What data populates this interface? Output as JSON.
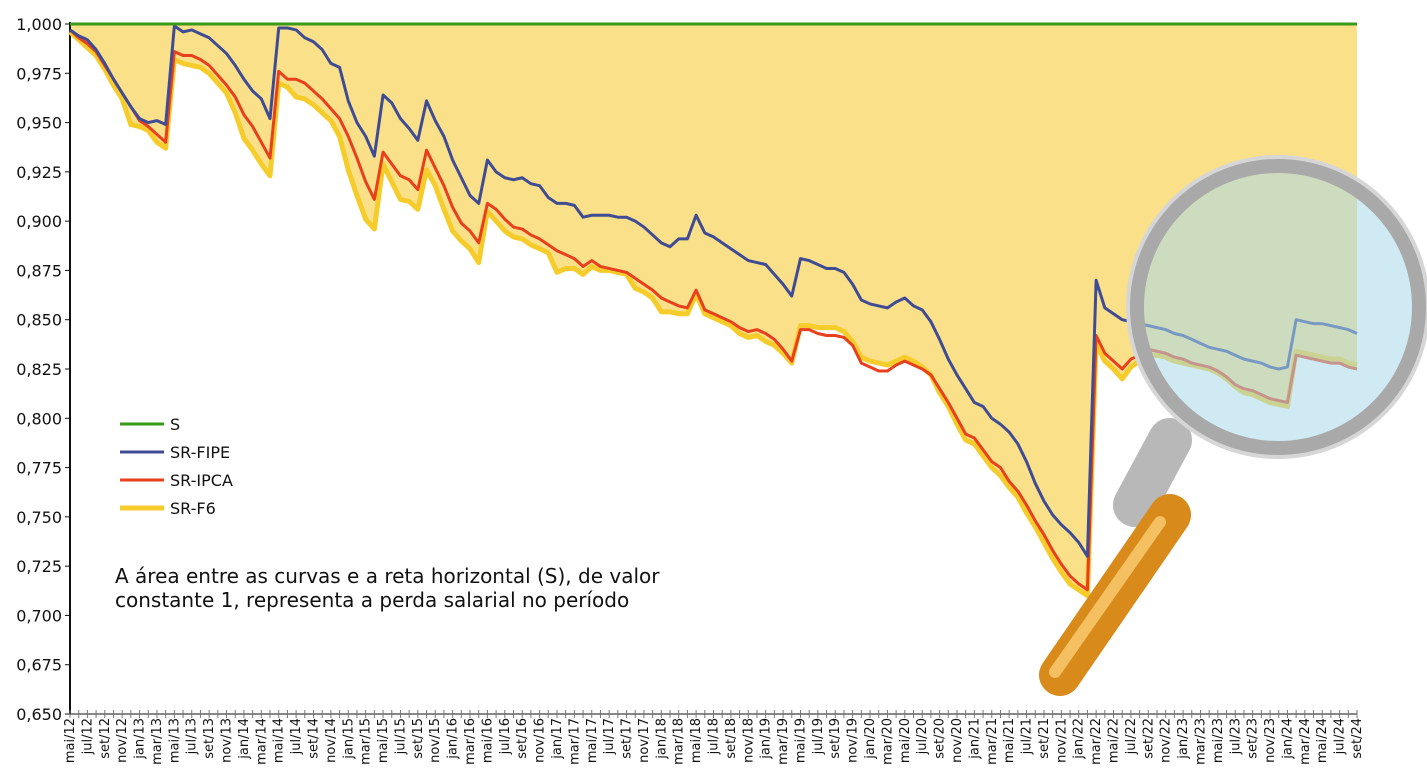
{
  "chart_data": {
    "type": "line",
    "annotation": [
      "A área entre as curvas e a reta horizontal (S), de valor",
      "constante 1, representa a perda salarial no período"
    ],
    "categories": [
      "mai/12",
      null,
      "jul/12",
      null,
      "set/12",
      null,
      "nov/12",
      null,
      "jan/13",
      null,
      "mar/13",
      null,
      "mai/13",
      null,
      "jul/13",
      null,
      "set/13",
      null,
      "nov/13",
      null,
      "jan/14",
      null,
      "mar/14",
      null,
      "mai/14",
      null,
      "jul/14",
      null,
      "set/14",
      null,
      "nov/14",
      null,
      "jan/15",
      null,
      "mar/15",
      null,
      "mai/15",
      null,
      "jul/15",
      null,
      "set/15",
      null,
      "nov/15",
      null,
      "jan/16",
      null,
      "mar/16",
      null,
      "mai/16",
      null,
      "jul/16",
      null,
      "set/16",
      null,
      "nov/16",
      null,
      "jan/17",
      null,
      "mar/17",
      null,
      "mai/17",
      null,
      "jul/17",
      null,
      "set/17",
      null,
      "nov/17",
      null,
      "jan/18",
      null,
      "mar/18",
      null,
      "mai/18",
      null,
      "jul/18",
      null,
      "set/18",
      null,
      "nov/18",
      null,
      "jan/19",
      null,
      "mar/19",
      null,
      "mai/19",
      null,
      "jul/19",
      null,
      "set/19",
      null,
      "nov/19",
      null,
      "jan/20",
      null,
      "mar/20",
      null,
      "mai/20",
      null,
      "jul/20",
      null,
      "set/20",
      null,
      "nov/20",
      null,
      "jan/21",
      null,
      "mar/21",
      null,
      "mai/21",
      null,
      "jul/21",
      null,
      "set/21",
      null,
      "nov/21",
      null,
      "jan/22",
      null,
      "mar/22",
      null,
      "mai/22",
      null,
      "jul/22",
      null,
      "set/22",
      null,
      "nov/22",
      null,
      "jan/23",
      null,
      "mar/23",
      null,
      "mai/23",
      null,
      "jul/23",
      null,
      "set/23",
      null,
      "nov/23",
      null,
      "jan/24",
      null,
      "mar/24",
      null,
      "mai/24",
      null,
      "jul/24",
      null,
      "set/24"
    ],
    "series": [
      {
        "name": "S",
        "color": "#3a9a1a",
        "values": [
          1,
          1,
          1,
          1,
          1,
          1,
          1,
          1,
          1,
          1,
          1,
          1,
          1,
          1,
          1,
          1,
          1,
          1,
          1,
          1,
          1,
          1,
          1,
          1,
          1,
          1,
          1,
          1,
          1,
          1,
          1,
          1,
          1,
          1,
          1,
          1,
          1,
          1,
          1,
          1,
          1,
          1,
          1,
          1,
          1,
          1,
          1,
          1,
          1,
          1,
          1,
          1,
          1,
          1,
          1,
          1,
          1,
          1,
          1,
          1,
          1,
          1,
          1,
          1,
          1,
          1,
          1,
          1,
          1,
          1,
          1,
          1,
          1,
          1,
          1,
          1,
          1,
          1,
          1,
          1,
          1,
          1,
          1,
          1,
          1,
          1,
          1,
          1,
          1,
          1,
          1,
          1,
          1,
          1,
          1,
          1,
          1,
          1,
          1,
          1,
          1,
          1,
          1,
          1,
          1,
          1,
          1,
          1,
          1,
          1,
          1,
          1,
          1,
          1,
          1,
          1,
          1,
          1,
          1,
          1,
          1,
          1,
          1,
          1,
          1,
          1,
          1,
          1,
          1,
          1,
          1,
          1,
          1,
          1,
          1,
          1,
          1,
          1,
          1,
          1,
          1,
          1,
          1,
          1,
          1,
          1,
          1,
          1,
          1
        ]
      },
      {
        "name": "SR-FIPE",
        "color": "#3f4c94",
        "values": [
          0.997,
          0.994,
          0.992,
          0.987,
          0.98,
          0.972,
          0.965,
          0.958,
          0.952,
          0.95,
          0.951,
          0.949,
          0.999,
          0.996,
          0.997,
          0.995,
          0.993,
          0.989,
          0.985,
          0.979,
          0.972,
          0.966,
          0.962,
          0.952,
          0.998,
          0.998,
          0.997,
          0.993,
          0.991,
          0.987,
          0.98,
          0.978,
          0.961,
          0.95,
          0.943,
          0.933,
          0.964,
          0.96,
          0.952,
          0.947,
          0.941,
          0.961,
          0.951,
          0.943,
          0.931,
          0.922,
          0.913,
          0.909,
          0.931,
          0.925,
          0.922,
          0.921,
          0.922,
          0.919,
          0.918,
          0.912,
          0.909,
          0.909,
          0.908,
          0.902,
          0.903,
          0.903,
          0.903,
          0.902,
          0.902,
          0.9,
          0.897,
          0.893,
          0.889,
          0.887,
          0.891,
          0.891,
          0.903,
          0.894,
          0.892,
          0.889,
          0.886,
          0.883,
          0.88,
          0.879,
          0.878,
          0.873,
          0.868,
          0.862,
          0.881,
          0.88,
          0.878,
          0.876,
          0.876,
          0.874,
          0.868,
          0.86,
          0.858,
          0.857,
          0.856,
          0.859,
          0.861,
          0.857,
          0.855,
          0.849,
          0.84,
          0.83,
          0.822,
          0.815,
          0.808,
          0.806,
          0.8,
          0.797,
          0.793,
          0.787,
          0.778,
          0.767,
          0.758,
          0.751,
          0.746,
          0.742,
          0.737,
          0.73,
          0.87,
          0.856,
          0.853,
          0.85,
          0.849,
          0.848,
          0.847,
          0.846,
          0.845,
          0.843,
          0.842,
          0.84,
          0.838,
          0.836,
          0.835,
          0.834,
          0.832,
          0.83,
          0.829,
          0.828,
          0.826,
          0.825,
          0.826,
          0.85,
          0.849,
          0.848,
          0.848,
          0.847,
          0.846,
          0.845,
          0.843
        ]
      },
      {
        "name": "SR-IPCA",
        "color": "#e8401c",
        "values": [
          0.997,
          0.993,
          0.99,
          0.986,
          0.979,
          0.972,
          0.965,
          0.958,
          0.951,
          0.948,
          0.944,
          0.94,
          0.986,
          0.984,
          0.984,
          0.982,
          0.979,
          0.974,
          0.969,
          0.963,
          0.954,
          0.948,
          0.94,
          0.932,
          0.976,
          0.972,
          0.972,
          0.97,
          0.966,
          0.962,
          0.957,
          0.952,
          0.943,
          0.932,
          0.92,
          0.911,
          0.935,
          0.929,
          0.923,
          0.921,
          0.916,
          0.936,
          0.927,
          0.918,
          0.907,
          0.899,
          0.895,
          0.889,
          0.909,
          0.906,
          0.901,
          0.897,
          0.896,
          0.893,
          0.891,
          0.888,
          0.885,
          0.883,
          0.881,
          0.877,
          0.88,
          0.877,
          0.876,
          0.875,
          0.874,
          0.871,
          0.868,
          0.865,
          0.861,
          0.859,
          0.857,
          0.856,
          0.865,
          0.855,
          0.853,
          0.851,
          0.849,
          0.846,
          0.844,
          0.845,
          0.843,
          0.84,
          0.835,
          0.829,
          0.845,
          0.845,
          0.843,
          0.842,
          0.842,
          0.841,
          0.837,
          0.828,
          0.826,
          0.824,
          0.824,
          0.827,
          0.829,
          0.827,
          0.825,
          0.822,
          0.815,
          0.808,
          0.8,
          0.792,
          0.79,
          0.784,
          0.778,
          0.775,
          0.768,
          0.763,
          0.756,
          0.748,
          0.741,
          0.733,
          0.726,
          0.72,
          0.716,
          0.713,
          0.842,
          0.833,
          0.829,
          0.825,
          0.83,
          0.832,
          0.835,
          0.834,
          0.833,
          0.831,
          0.83,
          0.828,
          0.827,
          0.826,
          0.824,
          0.821,
          0.817,
          0.815,
          0.814,
          0.812,
          0.81,
          0.809,
          0.808,
          0.832,
          0.831,
          0.83,
          0.829,
          0.828,
          0.828,
          0.826,
          0.825
        ]
      },
      {
        "name": "SR-F6",
        "color": "#f5cc2a",
        "values": [
          0.996,
          0.992,
          0.988,
          0.984,
          0.977,
          0.969,
          0.962,
          0.949,
          0.948,
          0.946,
          0.94,
          0.937,
          0.982,
          0.98,
          0.979,
          0.978,
          0.975,
          0.97,
          0.965,
          0.955,
          0.942,
          0.936,
          0.929,
          0.923,
          0.97,
          0.968,
          0.963,
          0.962,
          0.959,
          0.955,
          0.951,
          0.943,
          0.926,
          0.913,
          0.901,
          0.896,
          0.929,
          0.92,
          0.911,
          0.91,
          0.906,
          0.926,
          0.918,
          0.906,
          0.895,
          0.89,
          0.886,
          0.879,
          0.905,
          0.9,
          0.895,
          0.892,
          0.891,
          0.888,
          0.886,
          0.884,
          0.874,
          0.876,
          0.876,
          0.873,
          0.877,
          0.875,
          0.875,
          0.874,
          0.873,
          0.866,
          0.864,
          0.861,
          0.854,
          0.854,
          0.853,
          0.853,
          0.863,
          0.853,
          0.851,
          0.849,
          0.847,
          0.843,
          0.841,
          0.842,
          0.839,
          0.837,
          0.833,
          0.828,
          0.847,
          0.847,
          0.846,
          0.846,
          0.846,
          0.844,
          0.839,
          0.831,
          0.829,
          0.828,
          0.827,
          0.829,
          0.831,
          0.829,
          0.826,
          0.822,
          0.813,
          0.806,
          0.797,
          0.789,
          0.787,
          0.781,
          0.775,
          0.771,
          0.765,
          0.76,
          0.752,
          0.745,
          0.737,
          0.729,
          0.722,
          0.716,
          0.713,
          0.71,
          0.838,
          0.829,
          0.825,
          0.82,
          0.826,
          0.829,
          0.832,
          0.832,
          0.831,
          0.829,
          0.828,
          0.827,
          0.826,
          0.825,
          0.823,
          0.82,
          0.816,
          0.813,
          0.812,
          0.81,
          0.808,
          0.807,
          0.806,
          0.834,
          0.833,
          0.832,
          0.831,
          0.83,
          0.83,
          0.828,
          0.827
        ]
      }
    ],
    "area_color": "#fbe08a",
    "ylim": [
      0.65,
      1.0
    ],
    "yticks": [
      {
        "value": 0.65,
        "label": "0,650"
      },
      {
        "value": 0.675,
        "label": "0,675"
      },
      {
        "value": 0.7,
        "label": "0,700"
      },
      {
        "value": 0.725,
        "label": "0,725"
      },
      {
        "value": 0.75,
        "label": "0,750"
      },
      {
        "value": 0.775,
        "label": "0,775"
      },
      {
        "value": 0.8,
        "label": "0,800"
      },
      {
        "value": 0.825,
        "label": "0,825"
      },
      {
        "value": 0.85,
        "label": "0,850"
      },
      {
        "value": 0.875,
        "label": "0,875"
      },
      {
        "value": 0.9,
        "label": "0,900"
      },
      {
        "value": 0.925,
        "label": "0,925"
      },
      {
        "value": 0.95,
        "label": "0,950"
      },
      {
        "value": 0.975,
        "label": "0,975"
      },
      {
        "value": 1.0,
        "label": "1,000"
      }
    ],
    "grid": false,
    "legend": "left"
  }
}
